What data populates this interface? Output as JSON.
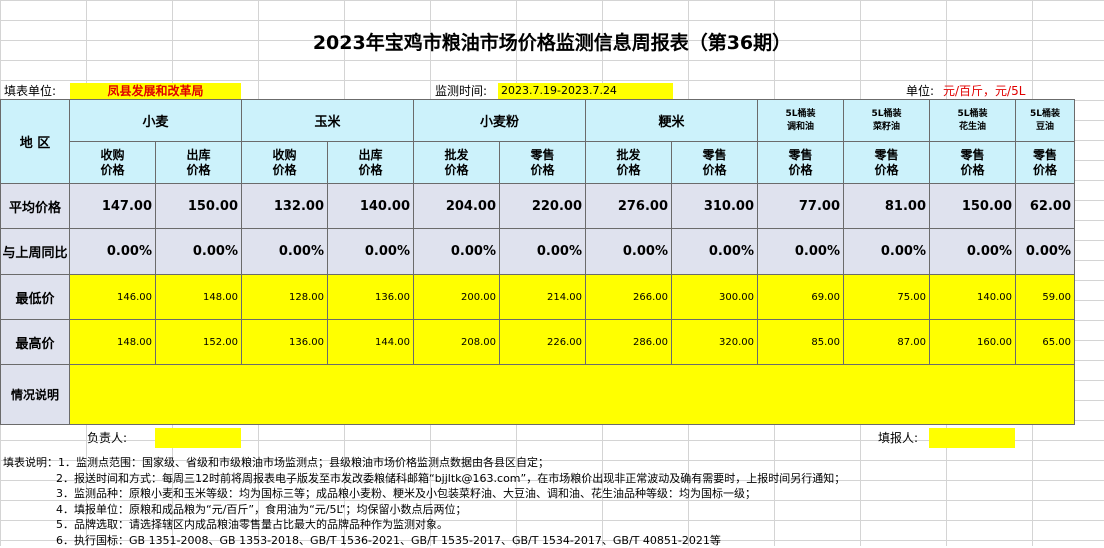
{
  "title": "2023年宝鸡市粮油市场价格监测信息周报表（第36期）",
  "meta": {
    "unit_label": "填表单位:",
    "unit_value": "凤县发展和改革局",
    "period_label": "监测时间:",
    "period_value": "2023.7.19-2023.7.24",
    "measure_label": "单位:",
    "measure_value": "元/百斤，元/5L"
  },
  "header": {
    "region": "地 区",
    "groups": [
      "小麦",
      "玉米",
      "小麦粉",
      "粳米"
    ],
    "oil_groups": [
      {
        "line1": "5L桶装",
        "line2": "调和油"
      },
      {
        "line1": "5L桶装",
        "line2": "菜籽油"
      },
      {
        "line1": "5L桶装",
        "line2": "花生油"
      },
      {
        "line1": "5L桶装",
        "line2": "豆油"
      }
    ],
    "subs": [
      {
        "line1": "收购",
        "line2": "价格"
      },
      {
        "line1": "出库",
        "line2": "价格"
      },
      {
        "line1": "收购",
        "line2": "价格"
      },
      {
        "line1": "出库",
        "line2": "价格"
      },
      {
        "line1": "批发",
        "line2": "价格"
      },
      {
        "line1": "零售",
        "line2": "价格"
      },
      {
        "line1": "批发",
        "line2": "价格"
      },
      {
        "line1": "零售",
        "line2": "价格"
      },
      {
        "line1": "零售",
        "line2": "价格"
      },
      {
        "line1": "零售",
        "line2": "价格"
      },
      {
        "line1": "零售",
        "line2": "价格"
      },
      {
        "line1": "零售",
        "line2": "价格"
      }
    ]
  },
  "rows": {
    "avg": {
      "label": "平均价格",
      "values": [
        "147.00",
        "150.00",
        "132.00",
        "140.00",
        "204.00",
        "220.00",
        "276.00",
        "310.00",
        "77.00",
        "81.00",
        "150.00",
        "62.00"
      ]
    },
    "wow": {
      "label": "与上周同比",
      "values": [
        "0.00%",
        "0.00%",
        "0.00%",
        "0.00%",
        "0.00%",
        "0.00%",
        "0.00%",
        "0.00%",
        "0.00%",
        "0.00%",
        "0.00%",
        "0.00%"
      ]
    },
    "low": {
      "label": "最低价",
      "values": [
        "146.00",
        "148.00",
        "128.00",
        "136.00",
        "200.00",
        "214.00",
        "266.00",
        "300.00",
        "69.00",
        "75.00",
        "140.00",
        "59.00"
      ]
    },
    "high": {
      "label": "最高价",
      "values": [
        "148.00",
        "152.00",
        "136.00",
        "144.00",
        "208.00",
        "226.00",
        "286.00",
        "320.00",
        "85.00",
        "87.00",
        "160.00",
        "65.00"
      ]
    },
    "info": {
      "label": "情况说明",
      "value": ""
    }
  },
  "sign": {
    "owner_label": "负责人:",
    "filler_label": "填报人:"
  },
  "notes": [
    "填表说明：1．监测点范围：国家级、省级和市级粮油市场监测点；县级粮油市场价格监测点数据由各县区自定；",
    "2．报送时间和方式：每周三12时前将周报表电子版发至市发改委粮储科邮箱“bjjltk@163.com”，在市场粮价出现非正常波动及确有需要时，上报时间另行通知；",
    "3．监测品种：原粮小麦和玉米等级：均为国标三等；成品粮小麦粉、粳米及小包装菜籽油、大豆油、调和油、花生油品种等级：均为国标一级；",
    "4．填报单位：原粮和成品粮为“元/百斤”，食用油为“元/5L”；均保留小数点后两位；",
    "5．品牌选取：请选择辖区内成品粮油零售量占比最大的品牌品种作为监测对象。",
    "6．执行国标：GB 1351-2008、GB 1353-2018、GB/T 1536-2021、GB/T 1535-2017、GB/T 1534-2017、GB/T 40851-2021等"
  ]
}
